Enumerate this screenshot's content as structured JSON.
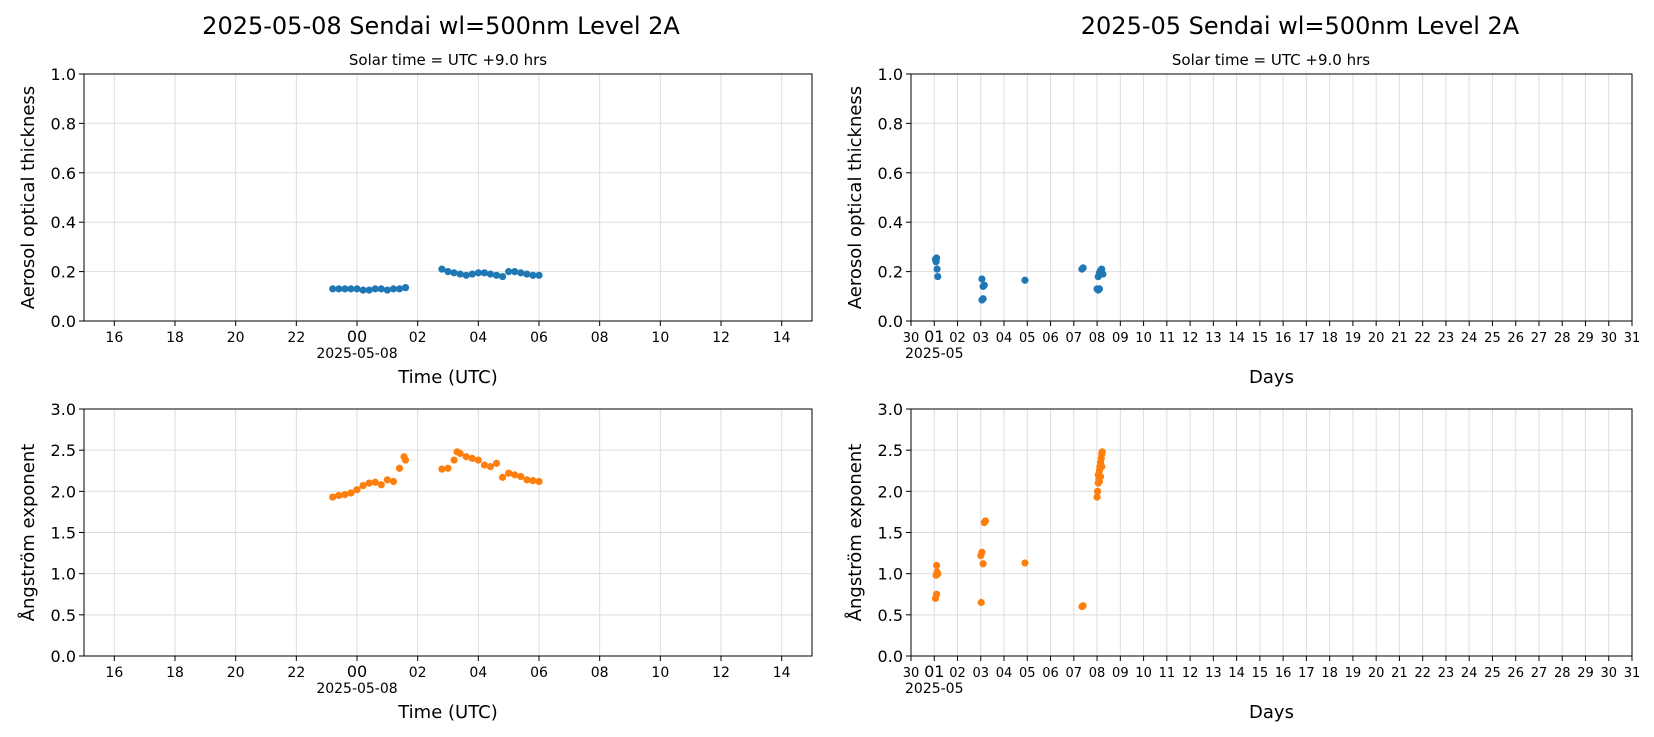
{
  "figure": {
    "left_title": "2025-05-08  Sendai  wl=500nm  Level 2A",
    "right_title": "2025-05  Sendai  wl=500nm  Level 2A",
    "left_subtitle": "Solar time = UTC +9.0 hrs",
    "right_subtitle": "Solar time = UTC +9.0 hrs"
  },
  "colors": {
    "aod": "#1f77b4",
    "angstrom": "#ff7f0e",
    "grid": "#dddddd"
  },
  "chart_data": [
    {
      "id": "daily-aod",
      "type": "scatter",
      "ylabel": "Aerosol optical thickness",
      "xlabel": "Time (UTC)",
      "x_sublabel": "2025-05-08",
      "x_range_hours": [
        -9,
        15
      ],
      "x_ticks": [
        "16",
        "18",
        "20",
        "22",
        "00",
        "02",
        "04",
        "06",
        "08",
        "10",
        "12",
        "14"
      ],
      "ylim": [
        0,
        1.0
      ],
      "yticks": [
        "0.0",
        "0.2",
        "0.4",
        "0.6",
        "0.8",
        "1.0"
      ],
      "grid": true,
      "series": [
        {
          "color": "#1f77b4",
          "x": [
            -0.8,
            -0.6,
            -0.4,
            -0.2,
            0.0,
            0.2,
            0.4,
            0.6,
            0.8,
            1.0,
            1.2,
            1.4,
            1.6,
            2.8,
            3.0,
            3.2,
            3.4,
            3.6,
            3.8,
            4.0,
            4.2,
            4.4,
            4.6,
            4.8,
            5.0,
            5.2,
            5.4,
            5.6,
            5.8,
            6.0
          ],
          "y": [
            0.13,
            0.13,
            0.13,
            0.13,
            0.13,
            0.125,
            0.125,
            0.13,
            0.13,
            0.125,
            0.13,
            0.13,
            0.135,
            0.21,
            0.2,
            0.195,
            0.19,
            0.185,
            0.19,
            0.195,
            0.195,
            0.19,
            0.185,
            0.18,
            0.2,
            0.2,
            0.195,
            0.19,
            0.185,
            0.185
          ]
        }
      ]
    },
    {
      "id": "monthly-aod",
      "type": "scatter",
      "ylabel": "Aerosol optical thickness",
      "xlabel": "Days",
      "x_sublabel": "2025-05",
      "x_range_days": [
        0,
        31
      ],
      "x_ticks": [
        "30",
        "01",
        "02",
        "03",
        "04",
        "05",
        "06",
        "07",
        "08",
        "09",
        "10",
        "11",
        "12",
        "13",
        "14",
        "15",
        "16",
        "17",
        "18",
        "19",
        "20",
        "21",
        "22",
        "23",
        "24",
        "25",
        "26",
        "27",
        "28",
        "29",
        "30",
        "31"
      ],
      "ylim": [
        0,
        1.0
      ],
      "yticks": [
        "0.0",
        "0.2",
        "0.4",
        "0.6",
        "0.8",
        "1.0"
      ],
      "grid": true,
      "series": [
        {
          "color": "#1f77b4",
          "x": [
            1.05,
            1.1,
            1.08,
            1.12,
            1.15,
            3.05,
            3.1,
            3.15,
            3.05,
            3.1,
            4.9,
            7.35,
            7.4,
            8.0,
            8.05,
            8.1,
            8.15,
            8.2,
            8.25,
            8.05,
            8.1,
            8.15
          ],
          "y": [
            0.25,
            0.255,
            0.24,
            0.21,
            0.18,
            0.17,
            0.14,
            0.145,
            0.085,
            0.09,
            0.165,
            0.21,
            0.215,
            0.13,
            0.125,
            0.13,
            0.2,
            0.21,
            0.19,
            0.18,
            0.195,
            0.205
          ]
        }
      ]
    },
    {
      "id": "daily-angstrom",
      "type": "scatter",
      "ylabel": "Ångström exponent",
      "xlabel": "Time (UTC)",
      "x_sublabel": "2025-05-08",
      "x_range_hours": [
        -9,
        15
      ],
      "x_ticks": [
        "16",
        "18",
        "20",
        "22",
        "00",
        "02",
        "04",
        "06",
        "08",
        "10",
        "12",
        "14"
      ],
      "ylim": [
        0,
        3.0
      ],
      "yticks": [
        "0.0",
        "0.5",
        "1.0",
        "1.5",
        "2.0",
        "2.5",
        "3.0"
      ],
      "grid": true,
      "series": [
        {
          "color": "#ff7f0e",
          "x": [
            -0.8,
            -0.6,
            -0.4,
            -0.2,
            0.0,
            0.2,
            0.4,
            0.6,
            0.8,
            1.0,
            1.2,
            1.4,
            1.6,
            2.8,
            3.0,
            3.2,
            3.4,
            3.6,
            3.8,
            4.0,
            4.2,
            4.4,
            4.6,
            4.8,
            5.0,
            5.2,
            5.4,
            5.6,
            5.8,
            6.0,
            1.55,
            3.3
          ],
          "y": [
            1.93,
            1.95,
            1.96,
            1.98,
            2.02,
            2.07,
            2.1,
            2.11,
            2.08,
            2.14,
            2.12,
            2.28,
            2.38,
            2.27,
            2.28,
            2.38,
            2.46,
            2.42,
            2.4,
            2.38,
            2.32,
            2.3,
            2.34,
            2.17,
            2.22,
            2.2,
            2.18,
            2.14,
            2.13,
            2.12,
            2.42,
            2.48
          ]
        }
      ]
    },
    {
      "id": "monthly-angstrom",
      "type": "scatter",
      "ylabel": "Ångström exponent",
      "xlabel": "Days",
      "x_sublabel": "2025-05",
      "x_range_days": [
        0,
        31
      ],
      "x_ticks": [
        "30",
        "01",
        "02",
        "03",
        "04",
        "05",
        "06",
        "07",
        "08",
        "09",
        "10",
        "11",
        "12",
        "13",
        "14",
        "15",
        "16",
        "17",
        "18",
        "19",
        "20",
        "21",
        "22",
        "23",
        "24",
        "25",
        "26",
        "27",
        "28",
        "29",
        "30",
        "31"
      ],
      "ylim": [
        0,
        3.0
      ],
      "yticks": [
        "0.0",
        "0.5",
        "1.0",
        "1.5",
        "2.0",
        "2.5",
        "3.0"
      ],
      "grid": true,
      "series": [
        {
          "color": "#ff7f0e",
          "x": [
            1.05,
            1.1,
            1.08,
            1.12,
            1.1,
            1.15,
            3.0,
            3.05,
            3.1,
            3.02,
            3.15,
            3.2,
            4.9,
            7.35,
            7.4,
            8.0,
            8.02,
            8.05,
            8.08,
            8.1,
            8.12,
            8.15,
            8.18,
            8.2,
            8.22,
            8.05,
            8.1,
            8.15,
            8.2
          ],
          "y": [
            0.7,
            0.75,
            0.98,
            1.02,
            1.1,
            1.0,
            1.22,
            1.26,
            1.12,
            0.65,
            1.62,
            1.64,
            1.13,
            0.6,
            0.61,
            1.93,
            2.0,
            2.1,
            2.15,
            2.25,
            2.3,
            2.35,
            2.4,
            2.45,
            2.48,
            2.2,
            2.12,
            2.18,
            2.3
          ]
        }
      ]
    }
  ]
}
